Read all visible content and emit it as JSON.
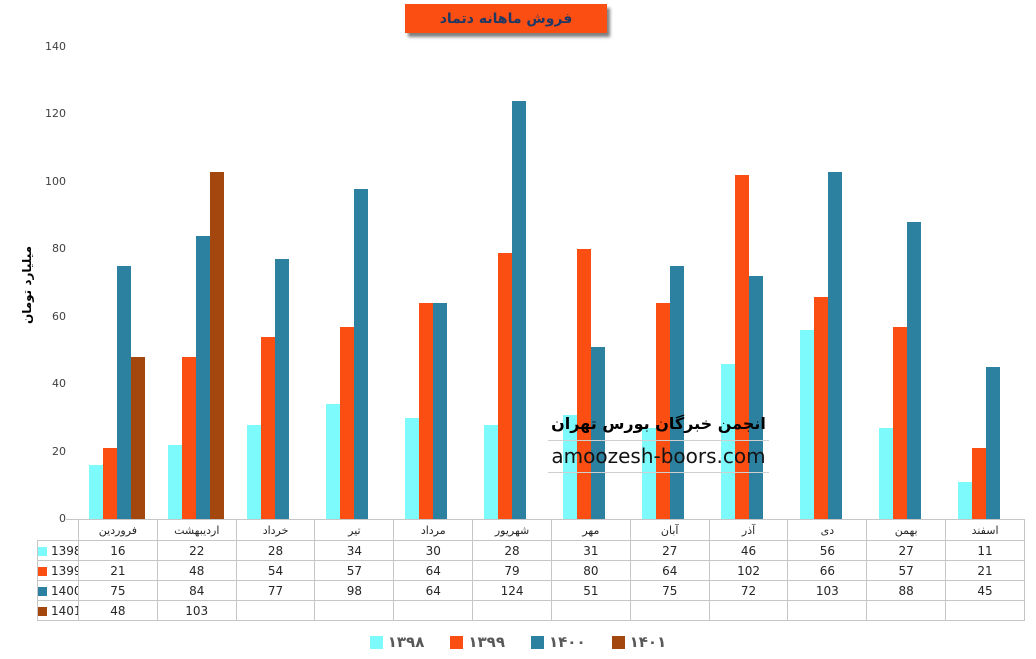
{
  "title": "فروش ماهانه دتماد",
  "y_axis": {
    "label": "میلیارد تومان",
    "ticks": [
      0,
      20,
      40,
      60,
      80,
      100,
      120,
      140
    ]
  },
  "chart_data": {
    "type": "bar",
    "title": "فروش ماهانه دتماد",
    "xlabel": "",
    "ylabel": "میلیارد تومان",
    "ylim": [
      0,
      140
    ],
    "grid": false,
    "legend_position": "bottom",
    "categories": [
      "فروردین",
      "اردیبهشت",
      "خرداد",
      "تیر",
      "مرداد",
      "شهریور",
      "مهر",
      "آبان",
      "آذر",
      "دی",
      "بهمن",
      "اسفند"
    ],
    "series": [
      {
        "name": "1398",
        "legend_label": "۱۳۹۸",
        "color": "#7dfafc",
        "values": [
          16,
          22,
          28,
          34,
          30,
          28,
          31,
          27,
          46,
          56,
          27,
          11
        ]
      },
      {
        "name": "1399",
        "legend_label": "۱۳۹۹",
        "color": "#fb4e12",
        "values": [
          21,
          48,
          54,
          57,
          64,
          79,
          80,
          64,
          102,
          66,
          57,
          21
        ]
      },
      {
        "name": "1400",
        "legend_label": "۱۴۰۰",
        "color": "#2c81a0",
        "values": [
          75,
          84,
          77,
          98,
          64,
          124,
          51,
          75,
          72,
          103,
          88,
          45
        ]
      },
      {
        "name": "1401",
        "legend_label": "۱۴۰۱",
        "color": "#a4470e",
        "values": [
          48,
          103,
          null,
          null,
          null,
          null,
          null,
          null,
          null,
          null,
          null,
          null
        ]
      }
    ]
  },
  "watermark": {
    "line1": "انجمن خبرگان بورس تهران",
    "line2": "amoozesh-boors.com"
  }
}
